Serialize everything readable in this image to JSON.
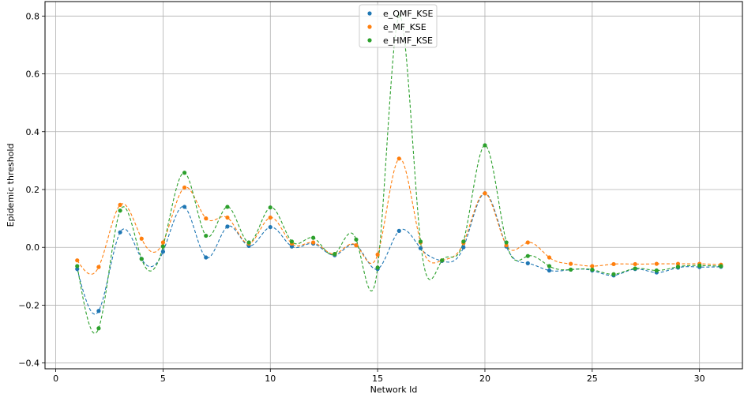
{
  "chart_data": {
    "type": "scatter",
    "title": "",
    "xlabel": "Network Id",
    "ylabel": "Epidemic threshold",
    "xlim": [
      -0.5,
      32.0
    ],
    "ylim": [
      -0.42,
      0.85
    ],
    "xticks": [
      0,
      5,
      10,
      15,
      20,
      25,
      30
    ],
    "xtick_labels": [
      "0",
      "5",
      "10",
      "15",
      "20",
      "25",
      "30"
    ],
    "yticks": [
      -0.4,
      -0.2,
      0.0,
      0.2,
      0.4,
      0.6,
      0.8
    ],
    "ytick_labels": [
      "−0.4",
      "−0.2",
      "0.0",
      "0.2",
      "0.4",
      "0.6",
      "0.8"
    ],
    "grid": true,
    "legend_position": "top-center",
    "x": [
      1,
      2,
      3,
      4,
      5,
      6,
      7,
      8,
      9,
      10,
      11,
      12,
      13,
      14,
      15,
      16,
      17,
      18,
      19,
      20,
      21,
      22,
      23,
      24,
      25,
      26,
      27,
      28,
      29,
      30,
      31
    ],
    "series": [
      {
        "name": "e_QMF_KSE",
        "color": "#1f77b4",
        "values": [
          -0.075,
          -0.22,
          0.052,
          -0.04,
          -0.015,
          0.14,
          -0.035,
          0.072,
          0.005,
          0.07,
          0.003,
          0.013,
          -0.027,
          0.007,
          -0.075,
          0.057,
          -0.003,
          -0.047,
          0.0,
          0.187,
          0.003,
          -0.055,
          -0.08,
          -0.077,
          -0.08,
          -0.097,
          -0.075,
          -0.087,
          -0.07,
          -0.068,
          -0.067
        ]
      },
      {
        "name": "e_MF_KSE",
        "color": "#ff7f0e",
        "values": [
          -0.045,
          -0.068,
          0.147,
          0.03,
          0.017,
          0.207,
          0.1,
          0.103,
          0.013,
          0.103,
          0.013,
          0.017,
          -0.023,
          0.007,
          -0.025,
          0.307,
          0.017,
          -0.045,
          0.015,
          0.187,
          0.007,
          0.017,
          -0.035,
          -0.057,
          -0.065,
          -0.058,
          -0.058,
          -0.057,
          -0.057,
          -0.057,
          -0.06
        ]
      },
      {
        "name": "e_HMF_KSE",
        "color": "#2ca02c",
        "values": [
          -0.065,
          -0.28,
          0.127,
          -0.04,
          0.003,
          0.258,
          0.04,
          0.14,
          0.017,
          0.138,
          0.02,
          0.033,
          -0.023,
          0.027,
          -0.07,
          0.8,
          0.02,
          -0.045,
          0.02,
          0.353,
          0.017,
          -0.03,
          -0.065,
          -0.077,
          -0.077,
          -0.093,
          -0.073,
          -0.08,
          -0.067,
          -0.063,
          -0.065
        ]
      }
    ]
  }
}
